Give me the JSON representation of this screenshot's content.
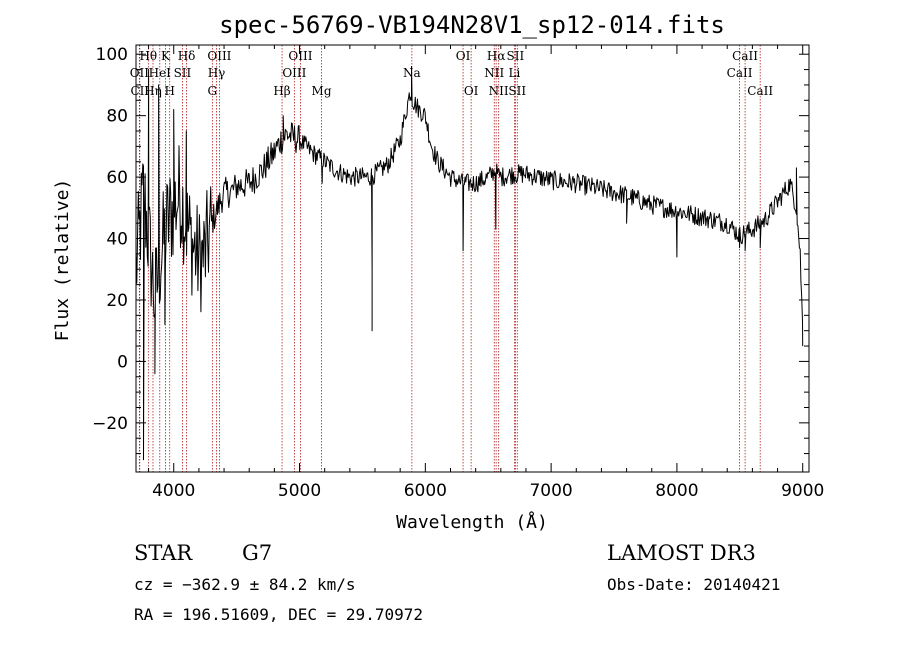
{
  "chart_data": {
    "type": "line",
    "title": "spec-56769-VB194N28V1_sp12-014.fits",
    "xlabel": "Wavelength (Å)",
    "ylabel": "Flux (relative)",
    "xlim": [
      3700,
      9050
    ],
    "ylim": [
      -36,
      103
    ],
    "x_ticks": [
      4000,
      5000,
      6000,
      7000,
      8000,
      9000
    ],
    "y_ticks": [
      -20,
      0,
      20,
      40,
      60,
      80,
      100
    ],
    "x_tick_labels": [
      "4000",
      "5000",
      "6000",
      "7000",
      "8000",
      "9000"
    ],
    "y_tick_labels": [
      "−20",
      "0",
      "20",
      "40",
      "60",
      "80",
      "100"
    ],
    "colors": {
      "spectrum": "#000000",
      "line_marker": "#b22222",
      "axes": "#000000",
      "background": "#ffffff"
    },
    "spectrum_anchors": [
      [
        3700,
        30
      ],
      [
        3760,
        55
      ],
      [
        3800,
        40
      ],
      [
        3850,
        20
      ],
      [
        3900,
        35
      ],
      [
        3950,
        45
      ],
      [
        4000,
        50
      ],
      [
        4050,
        55
      ],
      [
        4100,
        45
      ],
      [
        4150,
        38
      ],
      [
        4200,
        33
      ],
      [
        4250,
        35
      ],
      [
        4300,
        45
      ],
      [
        4350,
        50
      ],
      [
        4400,
        55
      ],
      [
        4450,
        55
      ],
      [
        4500,
        57
      ],
      [
        4600,
        58
      ],
      [
        4700,
        62
      ],
      [
        4800,
        68
      ],
      [
        4850,
        72
      ],
      [
        4900,
        74
      ],
      [
        4950,
        73
      ],
      [
        5000,
        72
      ],
      [
        5100,
        68
      ],
      [
        5200,
        65
      ],
      [
        5300,
        62
      ],
      [
        5400,
        60
      ],
      [
        5500,
        60
      ],
      [
        5550,
        60
      ],
      [
        5600,
        61
      ],
      [
        5700,
        64
      ],
      [
        5800,
        72
      ],
      [
        5850,
        82
      ],
      [
        5880,
        88
      ],
      [
        5900,
        85
      ],
      [
        5950,
        82
      ],
      [
        6000,
        80
      ],
      [
        6050,
        70
      ],
      [
        6100,
        65
      ],
      [
        6200,
        60
      ],
      [
        6300,
        58
      ],
      [
        6400,
        58
      ],
      [
        6500,
        60
      ],
      [
        6550,
        62
      ],
      [
        6600,
        60
      ],
      [
        6700,
        61
      ],
      [
        6800,
        61
      ],
      [
        6900,
        60
      ],
      [
        7000,
        59
      ],
      [
        7200,
        58
      ],
      [
        7400,
        56
      ],
      [
        7600,
        54
      ],
      [
        7800,
        51
      ],
      [
        8000,
        49
      ],
      [
        8200,
        47
      ],
      [
        8400,
        45
      ],
      [
        8500,
        41
      ],
      [
        8600,
        43
      ],
      [
        8700,
        46
      ],
      [
        8800,
        52
      ],
      [
        8850,
        55
      ],
      [
        8900,
        58
      ],
      [
        8950,
        50
      ],
      [
        8980,
        35
      ],
      [
        9000,
        10
      ]
    ],
    "spectrum_features": [
      {
        "x": 3760,
        "value": -32
      },
      {
        "x": 3800,
        "value": 95
      },
      {
        "x": 3850,
        "value": -4
      },
      {
        "x": 3880,
        "value": 90
      },
      {
        "x": 3930,
        "value": 12
      },
      {
        "x": 4000,
        "value": 82
      },
      {
        "x": 4100,
        "value": 75
      },
      {
        "x": 4220,
        "value": 27
      },
      {
        "x": 4870,
        "value": 80
      },
      {
        "x": 5180,
        "value": 58
      },
      {
        "x": 5577,
        "value": 30
      },
      {
        "x": 5577,
        "value": 10
      },
      {
        "x": 5890,
        "value": 96
      },
      {
        "x": 6300,
        "value": 36
      },
      {
        "x": 6560,
        "value": 43
      },
      {
        "x": 7600,
        "value": 45
      },
      {
        "x": 8000,
        "value": 34
      },
      {
        "x": 8498,
        "value": 37
      },
      {
        "x": 8542,
        "value": 36
      },
      {
        "x": 8662,
        "value": 37
      },
      {
        "x": 8950,
        "value": 63
      },
      {
        "x": 9000,
        "value": 5
      }
    ],
    "spectral_lines": [
      {
        "label": "Hθ",
        "x": 3798,
        "row": 0
      },
      {
        "label": "OII",
        "x": 3727,
        "row": 1
      },
      {
        "label": "CII",
        "x": 3730,
        "row": 2
      },
      {
        "label": "K",
        "x": 3934,
        "row": 0
      },
      {
        "label": "HeI",
        "x": 3889,
        "row": 1
      },
      {
        "label": "Hη",
        "x": 3835,
        "row": 2
      },
      {
        "label": "H",
        "x": 3968,
        "row": 2
      },
      {
        "label": "SII",
        "x": 4069,
        "row": 1
      },
      {
        "label": "Hδ",
        "x": 4102,
        "row": 0
      },
      {
        "label": "OIII",
        "x": 4363,
        "row": 0
      },
      {
        "label": "Hγ",
        "x": 4340,
        "row": 1
      },
      {
        "label": "G",
        "x": 4307,
        "row": 2
      },
      {
        "label": "OIII",
        "x": 5007,
        "row": 0
      },
      {
        "label": "OIII",
        "x": 4959,
        "row": 1
      },
      {
        "label": "Hβ",
        "x": 4861,
        "row": 2
      },
      {
        "label": "Mg",
        "x": 5175,
        "row": 2
      },
      {
        "label": "Na",
        "x": 5893,
        "row": 1
      },
      {
        "label": "OI",
        "x": 6300,
        "row": 0
      },
      {
        "label": "OI",
        "x": 6364,
        "row": 2
      },
      {
        "label": "Hα",
        "x": 6563,
        "row": 0
      },
      {
        "label": "SII",
        "x": 6716,
        "row": 0
      },
      {
        "label": "NII",
        "x": 6548,
        "row": 1
      },
      {
        "label": "Li",
        "x": 6708,
        "row": 1
      },
      {
        "label": "NII",
        "x": 6583,
        "row": 2
      },
      {
        "label": "SII",
        "x": 6731,
        "row": 2
      },
      {
        "label": "CaII",
        "x": 8542,
        "row": 0
      },
      {
        "label": "CaII",
        "x": 8498,
        "row": 1
      },
      {
        "label": "CaII",
        "x": 8662,
        "row": 2
      }
    ]
  },
  "footer": {
    "object_class": "STAR",
    "subclass": "G7",
    "survey": "LAMOST DR3",
    "redshift": "cz = −362.9 ± 84.2 km/s",
    "obs_date": "Obs-Date: 20140421",
    "coords": "RA = 196.51609, DEC =  29.70972"
  }
}
